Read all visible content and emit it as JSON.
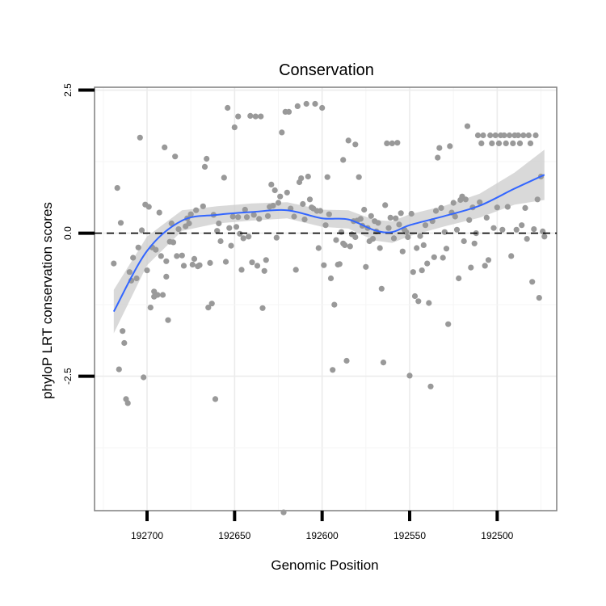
{
  "chart_data": {
    "type": "scatter",
    "title": "Conservation",
    "xlabel": "Genomic Position",
    "ylabel": "phyloP LRT conservation scores",
    "x_reversed": true,
    "xlim": [
      192730,
      192466
    ],
    "ylim": [
      -4.85,
      2.55
    ],
    "x_ticks": [
      192700,
      192650,
      192600,
      192550,
      192500
    ],
    "x_tick_labels": [
      "192700",
      "192650",
      "192600",
      "192550",
      "192500"
    ],
    "y_ticks": [
      2.5,
      0.0,
      -2.5
    ],
    "y_tick_labels": [
      "2.5",
      "0.0",
      "-2.5"
    ],
    "grid": true,
    "legend": "none",
    "reference_line": {
      "y": 0,
      "style": "dashed",
      "color": "#000000"
    },
    "point_color": "#999999",
    "smooth_color": "#3366ff",
    "band_color": "#cccccc",
    "series": [
      {
        "points": [
          [
            192719,
            -0.53
          ],
          [
            192717,
            0.79
          ],
          [
            192716,
            -2.38
          ],
          [
            192715,
            0.18
          ],
          [
            192714,
            -1.71
          ],
          [
            192713,
            -1.92
          ],
          [
            192712,
            -2.9
          ],
          [
            192711,
            -2.97
          ],
          [
            192710,
            -0.68
          ],
          [
            192709,
            -0.83
          ],
          [
            192708,
            -0.43
          ],
          [
            192706,
            -0.79
          ],
          [
            192705,
            -0.25
          ],
          [
            192704,
            1.67
          ],
          [
            192703,
            0.05
          ],
          [
            192702,
            -2.52
          ],
          [
            192701,
            0.5
          ],
          [
            192700,
            -0.65
          ],
          [
            192699,
            0.46
          ],
          [
            192698,
            -1.3
          ],
          [
            192697,
            -0.25
          ],
          [
            192696,
            -1.11
          ],
          [
            192696,
            -1.02
          ],
          [
            192695,
            -0.29
          ],
          [
            192694,
            -1.08
          ],
          [
            192693,
            0.36
          ],
          [
            192692,
            -0.4
          ],
          [
            192691,
            -1.08
          ],
          [
            192690,
            1.5
          ],
          [
            192689,
            -0.49
          ],
          [
            192689,
            -0.76
          ],
          [
            192688,
            -1.52
          ],
          [
            192687,
            -0.15
          ],
          [
            192686,
            0.17
          ],
          [
            192685,
            -0.16
          ],
          [
            192684,
            1.34
          ],
          [
            192683,
            -0.4
          ],
          [
            192682,
            0.07
          ],
          [
            192680,
            -0.39
          ],
          [
            192679,
            -0.57
          ],
          [
            192678,
            0.12
          ],
          [
            192677,
            0.26
          ],
          [
            192676,
            0.17
          ],
          [
            192675,
            0.33
          ],
          [
            192674,
            -0.55
          ],
          [
            192673,
            -0.45
          ],
          [
            192672,
            0.4
          ],
          [
            192671,
            -0.58
          ],
          [
            192670,
            -0.56
          ],
          [
            192668,
            0.47
          ],
          [
            192667,
            1.16
          ],
          [
            192666,
            1.3
          ],
          [
            192665,
            -1.3
          ],
          [
            192664,
            -0.52
          ],
          [
            192663,
            -1.23
          ],
          [
            192662,
            0.32
          ],
          [
            192661,
            -2.9
          ],
          [
            192660,
            0.04
          ],
          [
            192659,
            0.17
          ],
          [
            192658,
            -0.14
          ],
          [
            192656,
            0.97
          ],
          [
            192655,
            -0.5
          ],
          [
            192654,
            2.19
          ],
          [
            192653,
            0.09
          ],
          [
            192652,
            -0.22
          ],
          [
            192651,
            0.29
          ],
          [
            192650,
            1.85
          ],
          [
            192649,
            0.11
          ],
          [
            192648,
            2.04
          ],
          [
            192648,
            0.28
          ],
          [
            192647,
            -0.01
          ],
          [
            192646,
            -0.64
          ],
          [
            192645,
            -0.09
          ],
          [
            192644,
            0.41
          ],
          [
            192643,
            0.28
          ],
          [
            192642,
            -0.06
          ],
          [
            192641,
            2.05
          ],
          [
            192640,
            -0.51
          ],
          [
            192639,
            0.32
          ],
          [
            192638,
            2.04
          ],
          [
            192637,
            -0.57
          ],
          [
            192636,
            0.25
          ],
          [
            192635,
            2.04
          ],
          [
            192634,
            -1.31
          ],
          [
            192633,
            -0.66
          ],
          [
            192632,
            -0.47
          ],
          [
            192631,
            0.3
          ],
          [
            192630,
            0.46
          ],
          [
            192629,
            0.85
          ],
          [
            192628,
            0.48
          ],
          [
            192627,
            0.75
          ],
          [
            192626,
            -0.08
          ],
          [
            192625,
            0.53
          ],
          [
            192624,
            0.64
          ],
          [
            192623,
            1.76
          ],
          [
            192622,
            -4.88
          ],
          [
            192621,
            2.12
          ],
          [
            192620,
            0.71
          ],
          [
            192619,
            2.12
          ],
          [
            192618,
            0.43
          ],
          [
            192616,
            0.29
          ],
          [
            192615,
            -0.64
          ],
          [
            192614,
            2.22
          ],
          [
            192613,
            0.89
          ],
          [
            192612,
            0.96
          ],
          [
            192611,
            0.51
          ],
          [
            192610,
            0.24
          ],
          [
            192609,
            2.26
          ],
          [
            192608,
            0.99
          ],
          [
            192607,
            0.59
          ],
          [
            192606,
            0.45
          ],
          [
            192605,
            0.43
          ],
          [
            192604,
            2.26
          ],
          [
            192603,
            0.39
          ],
          [
            192602,
            -0.26
          ],
          [
            192601,
            0.39
          ],
          [
            192600,
            2.19
          ],
          [
            192599,
            -0.56
          ],
          [
            192598,
            0.14
          ],
          [
            192597,
            0.98
          ],
          [
            192596,
            0.33
          ],
          [
            192595,
            -0.79
          ],
          [
            192594,
            -2.39
          ],
          [
            192593,
            -1.25
          ],
          [
            192592,
            -0.12
          ],
          [
            192591,
            -0.55
          ],
          [
            192590,
            -0.54
          ],
          [
            192589,
            0.02
          ],
          [
            192588,
            -0.18
          ],
          [
            192588,
            1.28
          ],
          [
            192587,
            -0.21
          ],
          [
            192586,
            -2.23
          ],
          [
            192585,
            1.62
          ],
          [
            192584,
            -0.23
          ],
          [
            192583,
            -0.02
          ],
          [
            192582,
            0.21
          ],
          [
            192581,
            1.55
          ],
          [
            192581,
            -0.07
          ],
          [
            192580,
            0.22
          ],
          [
            192579,
            0.98
          ],
          [
            192578,
            0.25
          ],
          [
            192577,
            0.13
          ],
          [
            192576,
            0.41
          ],
          [
            192575,
            -0.59
          ],
          [
            192574,
            0.09
          ],
          [
            192573,
            -0.14
          ],
          [
            192572,
            0.3
          ],
          [
            192571,
            -0.1
          ],
          [
            192570,
            0.21
          ],
          [
            192569,
            0.03
          ],
          [
            192568,
            0.18
          ],
          [
            192567,
            -0.26
          ],
          [
            192566,
            -0.97
          ],
          [
            192565,
            -2.26
          ],
          [
            192564,
            0.49
          ],
          [
            192563,
            1.57
          ],
          [
            192562,
            0.09
          ],
          [
            192561,
            0.27
          ],
          [
            192560,
            1.57
          ],
          [
            192559,
            -0.09
          ],
          [
            192558,
            0.26
          ],
          [
            192557,
            1.58
          ],
          [
            192556,
            0.15
          ],
          [
            192555,
            0.35
          ],
          [
            192554,
            -0.32
          ],
          [
            192553,
            0.06
          ],
          [
            192552,
            0.02
          ],
          [
            192551,
            -0.07
          ],
          [
            192550,
            -2.49
          ],
          [
            192549,
            0.34
          ],
          [
            192548,
            -0.68
          ],
          [
            192547,
            -1.1
          ],
          [
            192546,
            -0.26
          ],
          [
            192545,
            -1.19
          ],
          [
            192544,
            -0.05
          ],
          [
            192543,
            -0.65
          ],
          [
            192542,
            -0.21
          ],
          [
            192541,
            0.14
          ],
          [
            192540,
            -0.53
          ],
          [
            192539,
            -1.22
          ],
          [
            192538,
            -2.68
          ],
          [
            192537,
            0.21
          ],
          [
            192536,
            -0.42
          ],
          [
            192535,
            0.39
          ],
          [
            192534,
            1.32
          ],
          [
            192533,
            1.49
          ],
          [
            192532,
            0.44
          ],
          [
            192531,
            -0.43
          ],
          [
            192530,
            0.02
          ],
          [
            192529,
            -0.27
          ],
          [
            192528,
            -1.59
          ],
          [
            192527,
            1.52
          ],
          [
            192526,
            0.36
          ],
          [
            192525,
            0.53
          ],
          [
            192524,
            0.29
          ],
          [
            192523,
            0.06
          ],
          [
            192522,
            -0.79
          ],
          [
            192521,
            0.58
          ],
          [
            192520,
            0.64
          ],
          [
            192519,
            -0.14
          ],
          [
            192518,
            0.59
          ],
          [
            192517,
            1.87
          ],
          [
            192516,
            0.23
          ],
          [
            192515,
            -0.6
          ],
          [
            192514,
            0.45
          ],
          [
            192513,
            -0.18
          ],
          [
            192512,
            0.0
          ],
          [
            192511,
            1.71
          ],
          [
            192510,
            0.54
          ],
          [
            192509,
            1.57
          ],
          [
            192508,
            1.71
          ],
          [
            192507,
            -0.57
          ],
          [
            192506,
            0.27
          ],
          [
            192505,
            -0.47
          ],
          [
            192504,
            1.71
          ],
          [
            192503,
            1.57
          ],
          [
            192502,
            0.09
          ],
          [
            192501,
            1.71
          ],
          [
            192500,
            0.45
          ],
          [
            192499,
            1.57
          ],
          [
            192498,
            1.71
          ],
          [
            192497,
            0.06
          ],
          [
            192496,
            1.71
          ],
          [
            192495,
            1.57
          ],
          [
            192494,
            0.46
          ],
          [
            192493,
            1.71
          ],
          [
            192492,
            -0.4
          ],
          [
            192491,
            1.57
          ],
          [
            192490,
            1.71
          ],
          [
            192489,
            0.06
          ],
          [
            192488,
            1.71
          ],
          [
            192487,
            1.57
          ],
          [
            192486,
            0.14
          ],
          [
            192485,
            1.71
          ],
          [
            192484,
            0.44
          ],
          [
            192483,
            -0.1
          ],
          [
            192482,
            1.71
          ],
          [
            192481,
            1.57
          ],
          [
            192480,
            -0.85
          ],
          [
            192479,
            0.07
          ],
          [
            192478,
            1.71
          ],
          [
            192477,
            0.59
          ],
          [
            192476,
            -1.13
          ],
          [
            192475,
            0.99
          ],
          [
            192474,
            0.03
          ],
          [
            192473,
            -0.06
          ]
        ]
      }
    ],
    "smooth": {
      "x": [
        192719,
        192700,
        192680,
        192660,
        192640,
        192620,
        192600,
        192585,
        192570,
        192560,
        192550,
        192530,
        192510,
        192490,
        192473
      ],
      "y": [
        -1.37,
        -0.31,
        0.22,
        0.32,
        0.37,
        0.4,
        0.26,
        0.24,
        0.05,
        0.02,
        0.14,
        0.3,
        0.48,
        0.78,
        1.02
      ],
      "lower": [
        -1.75,
        -0.56,
        0.04,
        0.17,
        0.22,
        0.26,
        0.11,
        0.08,
        -0.13,
        -0.17,
        -0.05,
        0.12,
        0.27,
        0.5,
        0.58
      ],
      "upper": [
        -0.99,
        -0.06,
        0.4,
        0.47,
        0.52,
        0.54,
        0.41,
        0.4,
        0.23,
        0.21,
        0.33,
        0.48,
        0.69,
        1.06,
        1.46
      ]
    }
  }
}
